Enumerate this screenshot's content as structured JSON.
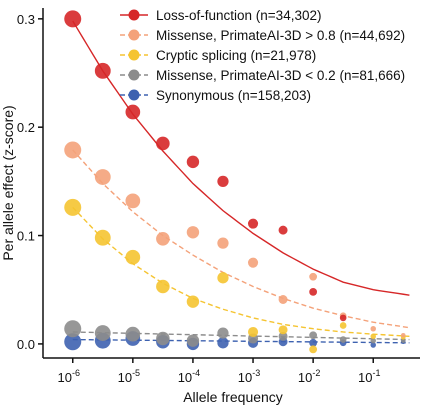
{
  "chart_data": {
    "type": "scatter",
    "title": "",
    "xlabel": "Allele frequency",
    "ylabel": "Per allele effect (z-score)",
    "x_scale": "log",
    "xlim": [
      3.2e-07,
      0.6
    ],
    "ylim": [
      -0.013,
      0.31
    ],
    "x_ticks": [
      1e-06,
      1e-05,
      0.0001,
      0.001,
      0.01,
      0.1
    ],
    "x_tick_labels": [
      {
        "base": "10",
        "exp": "-6"
      },
      {
        "base": "10",
        "exp": "-5"
      },
      {
        "base": "10",
        "exp": "-4"
      },
      {
        "base": "10",
        "exp": "-3"
      },
      {
        "base": "10",
        "exp": "-2"
      },
      {
        "base": "10",
        "exp": "-1"
      }
    ],
    "y_ticks": [
      0.0,
      0.1,
      0.2,
      0.3
    ],
    "y_tick_labels": [
      "0.0",
      "0.1",
      "0.2",
      "0.3"
    ],
    "grid": false,
    "legend_position": "top-right",
    "series": [
      {
        "name": "Loss-of-function (n=34,302)",
        "color": "#d62728",
        "fit_style": "solid",
        "x": [
          1e-06,
          3.16e-06,
          1e-05,
          3.16e-05,
          0.0001,
          0.000316,
          0.001,
          0.00316,
          0.01,
          0.0316
        ],
        "y": [
          0.3,
          0.252,
          0.214,
          0.185,
          0.168,
          0.15,
          0.111,
          0.105,
          0.048,
          0.024
        ],
        "fit_x": [
          1e-06,
          3.16e-06,
          1e-05,
          3.16e-05,
          0.0001,
          0.000316,
          0.001,
          0.00316,
          0.01,
          0.0316,
          0.1,
          0.4
        ],
        "fit_y": [
          0.298,
          0.252,
          0.212,
          0.178,
          0.148,
          0.123,
          0.102,
          0.084,
          0.069,
          0.057,
          0.05,
          0.045
        ]
      },
      {
        "name": "Missense, PrimateAI-3D > 0.8 (n=44,692)",
        "color": "#f4a27a",
        "fit_style": "dashed",
        "x": [
          1e-06,
          3.16e-06,
          1e-05,
          3.16e-05,
          0.0001,
          0.000316,
          0.001,
          0.00316,
          0.01,
          0.0316,
          0.1,
          0.316
        ],
        "y": [
          0.179,
          0.154,
          0.132,
          0.097,
          0.103,
          0.093,
          0.075,
          0.041,
          0.062,
          0.026,
          0.014,
          0.008
        ],
        "fit_x": [
          1e-06,
          3.16e-06,
          1e-05,
          3.16e-05,
          0.0001,
          0.000316,
          0.001,
          0.00316,
          0.01,
          0.0316,
          0.1,
          0.4
        ],
        "fit_y": [
          0.179,
          0.148,
          0.122,
          0.1,
          0.082,
          0.066,
          0.053,
          0.042,
          0.033,
          0.026,
          0.02,
          0.015
        ]
      },
      {
        "name": "Cryptic splicing (n=21,978)",
        "color": "#f5c431",
        "fit_style": "dashed",
        "x": [
          1e-06,
          3.16e-06,
          1e-05,
          3.16e-05,
          0.0001,
          0.000316,
          0.001,
          0.00316,
          0.01,
          0.0316,
          0.1,
          0.316
        ],
        "y": [
          0.126,
          0.098,
          0.08,
          0.053,
          0.039,
          0.061,
          0.011,
          0.013,
          -0.005,
          0.017,
          0.007,
          0.006
        ],
        "fit_x": [
          1e-06,
          3.16e-06,
          1e-05,
          3.16e-05,
          0.0001,
          0.000316,
          0.001,
          0.00316,
          0.01,
          0.0316,
          0.1,
          0.4
        ],
        "fit_y": [
          0.126,
          0.097,
          0.074,
          0.056,
          0.042,
          0.032,
          0.024,
          0.018,
          0.014,
          0.011,
          0.009,
          0.007
        ]
      },
      {
        "name": "Missense, PrimateAI-3D < 0.2 (n=81,666)",
        "color": "#8c8c8c",
        "fit_style": "dashed",
        "x": [
          1e-06,
          3.16e-06,
          1e-05,
          3.16e-05,
          0.0001,
          0.000316,
          0.001,
          0.00316,
          0.01,
          0.0316,
          0.1,
          0.316
        ],
        "y": [
          0.014,
          0.01,
          0.009,
          0.005,
          0.003,
          0.01,
          0.005,
          0.007,
          0.008,
          0.004,
          0.003,
          0.003
        ],
        "fit_x": [
          1e-06,
          0.4
        ],
        "fit_y": [
          0.011,
          0.004
        ]
      },
      {
        "name": "Synonymous (n=158,203)",
        "color": "#3e62b0",
        "fit_style": "dashed",
        "x": [
          1e-06,
          3.16e-06,
          1e-05,
          3.16e-05,
          0.0001,
          0.000316,
          0.001,
          0.00316,
          0.01,
          0.0316,
          0.1,
          0.316
        ],
        "y": [
          0.002,
          0.003,
          0.005,
          0.002,
          0.0,
          0.001,
          0.001,
          0.002,
          0.001,
          0.001,
          -0.001,
          0.002
        ],
        "fit_x": [
          1e-06,
          0.4
        ],
        "fit_y": [
          0.004,
          0.001
        ]
      }
    ]
  }
}
